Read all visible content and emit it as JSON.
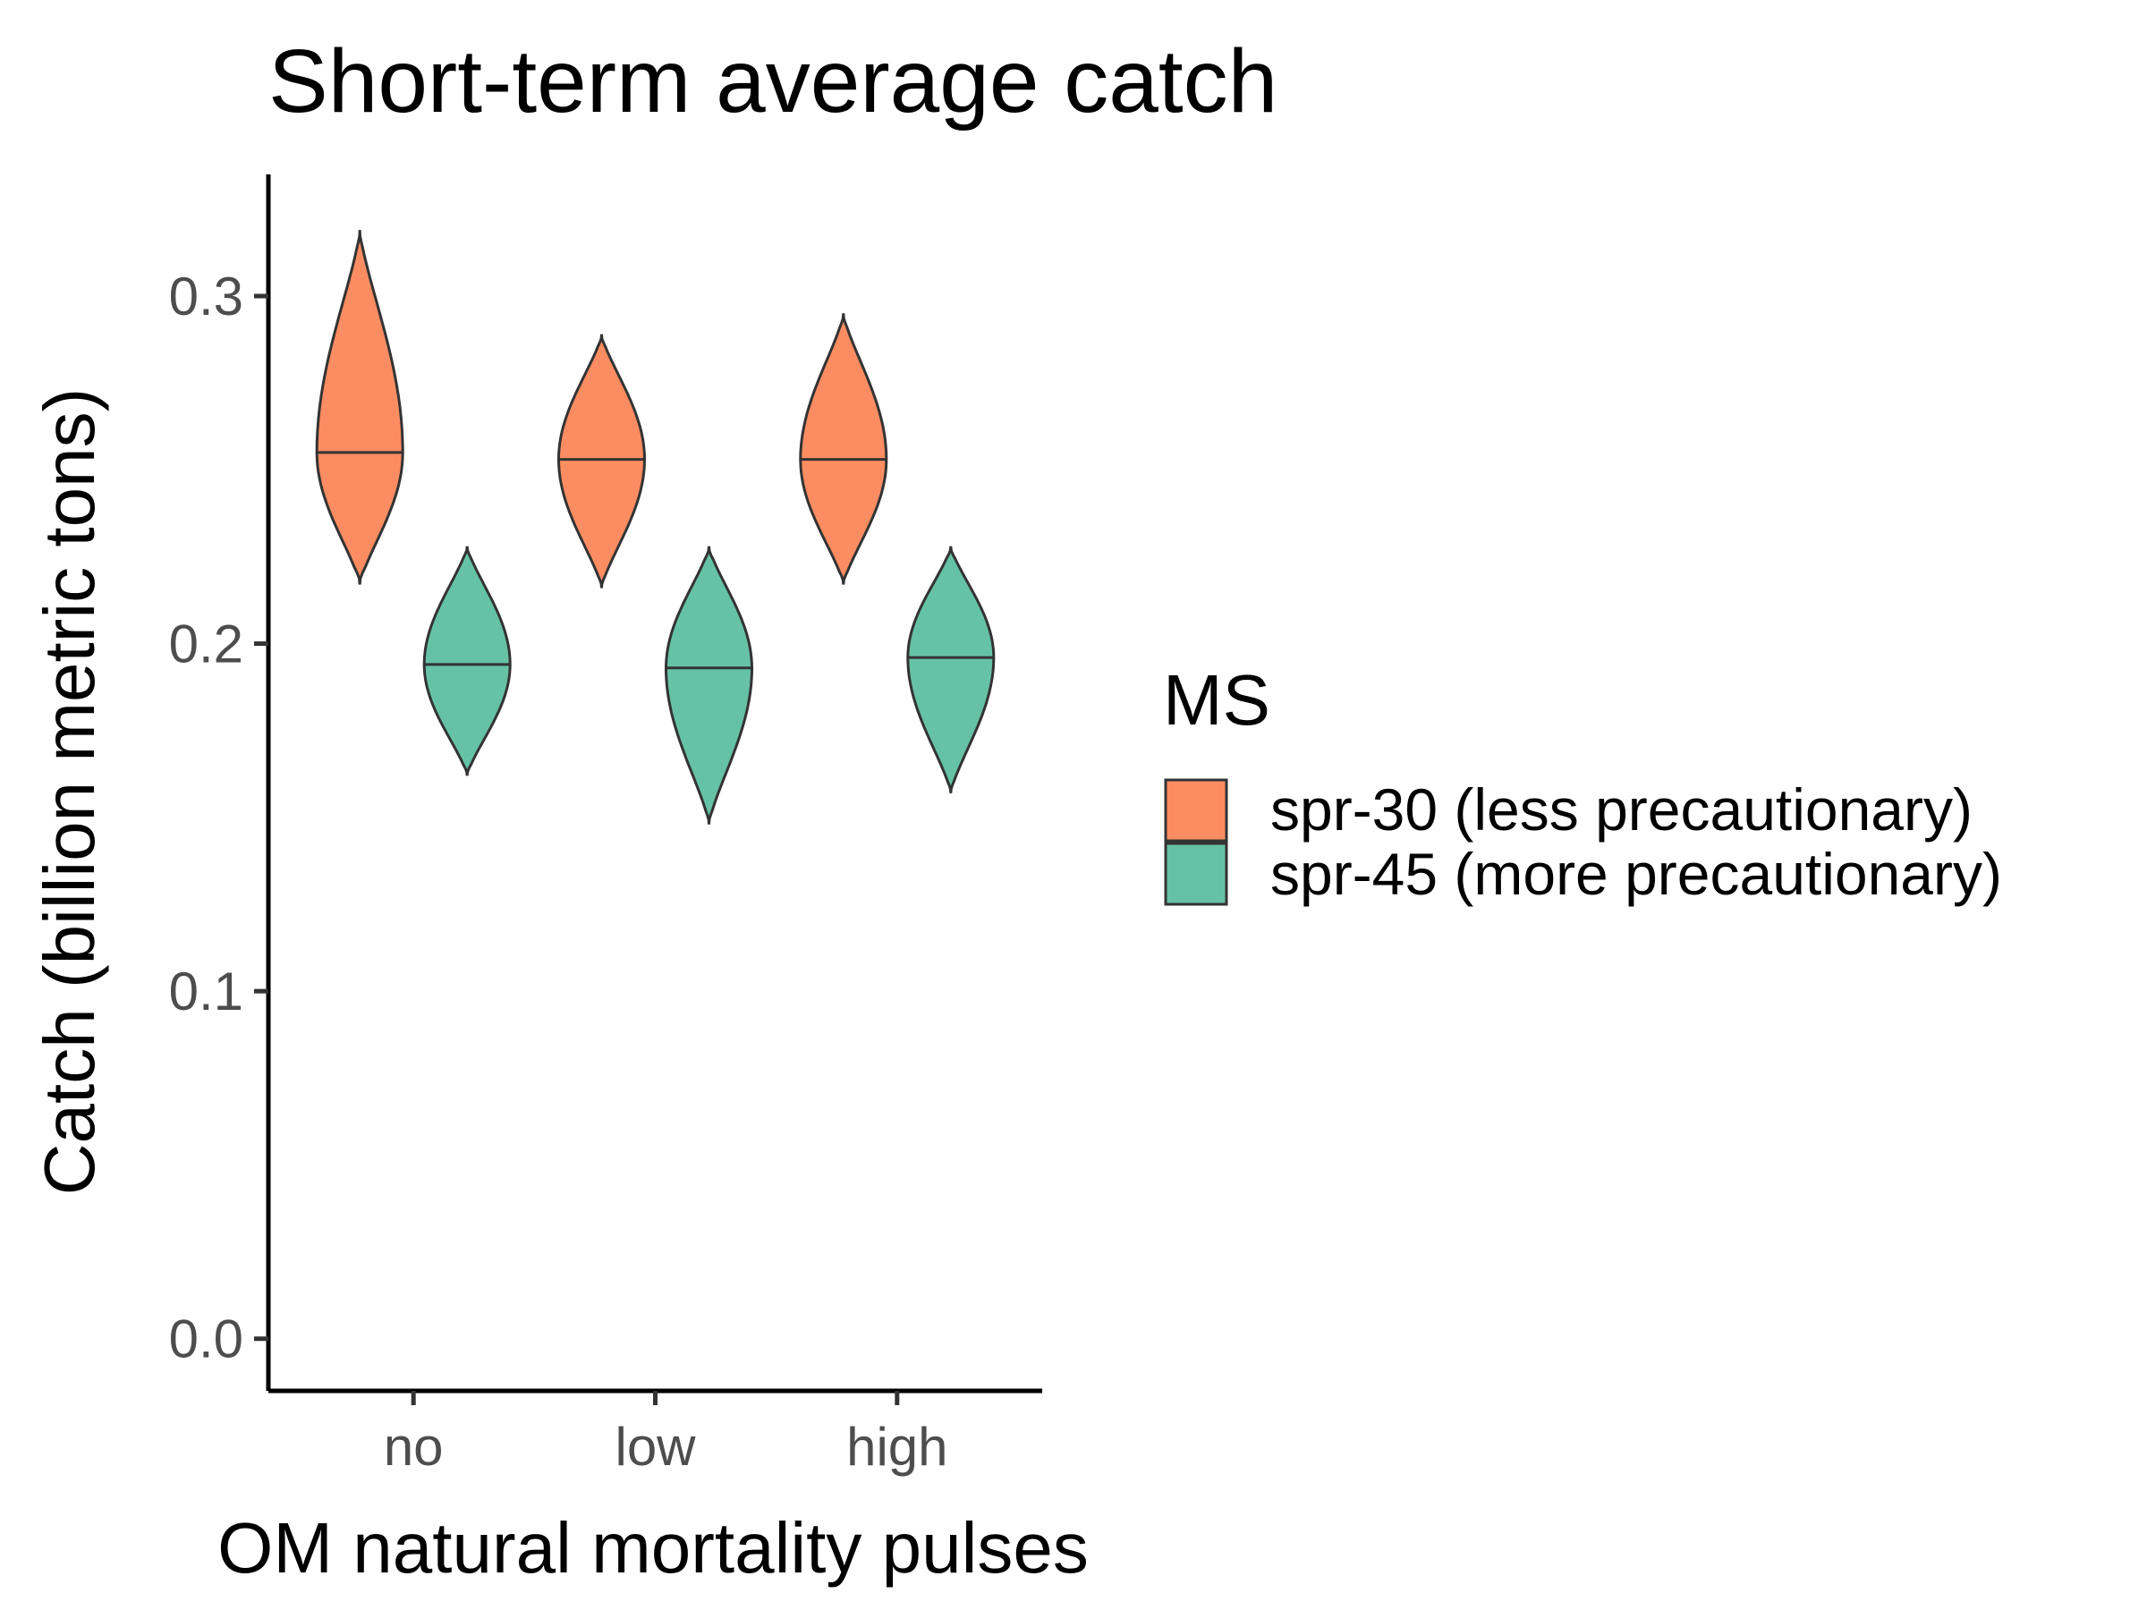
{
  "chart_data": {
    "type": "violin",
    "title": "Short-term average catch",
    "xlabel": "OM natural mortality pulses",
    "ylabel": "Catch (billion metric tons)",
    "categories": [
      "no",
      "low",
      "high"
    ],
    "ylim": [
      -0.015,
      0.335
    ],
    "yticks": [
      0.0,
      0.1,
      0.2,
      0.3
    ],
    "ytick_labels": [
      "0.0",
      "0.1",
      "0.2",
      "0.3"
    ],
    "grid": false,
    "legend": {
      "title": "MS",
      "position": "right"
    },
    "series": [
      {
        "name": "spr-30 (less precautionary)",
        "color": "#FC8D62",
        "violins": [
          {
            "category": "no",
            "min": 0.217,
            "max": 0.319,
            "median": 0.255
          },
          {
            "category": "low",
            "min": 0.216,
            "max": 0.289,
            "median": 0.253
          },
          {
            "category": "high",
            "min": 0.217,
            "max": 0.295,
            "median": 0.253
          }
        ]
      },
      {
        "name": "spr-45 (more precautionary)",
        "color": "#66C2A5",
        "violins": [
          {
            "category": "no",
            "min": 0.162,
            "max": 0.228,
            "median": 0.194
          },
          {
            "category": "low",
            "min": 0.148,
            "max": 0.228,
            "median": 0.193
          },
          {
            "category": "high",
            "min": 0.157,
            "max": 0.228,
            "median": 0.196
          }
        ]
      }
    ]
  }
}
